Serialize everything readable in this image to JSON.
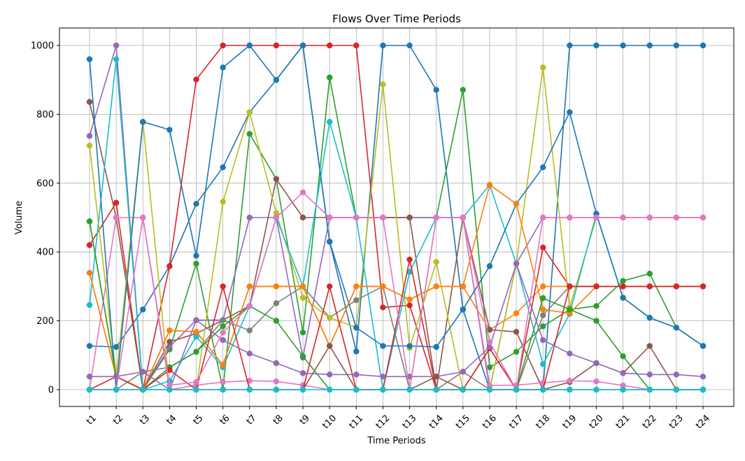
{
  "chart_data": {
    "type": "line",
    "title": "Flows Over Time Periods",
    "xlabel": "Time Periods",
    "ylabel": "Volume",
    "ylim": [
      -50,
      1050
    ],
    "yticks": [
      0,
      200,
      400,
      600,
      800,
      1000
    ],
    "grid": true,
    "categories": [
      "t1",
      "t2",
      "t3",
      "t4",
      "t5",
      "t6",
      "t7",
      "t8",
      "t9",
      "t10",
      "t11",
      "t12",
      "t13",
      "t14",
      "t15",
      "t16",
      "t17",
      "t18",
      "t19",
      "t20",
      "t21",
      "t22",
      "t23",
      "t24"
    ],
    "series": [
      {
        "color": "#1f77b4",
        "values": [
          127,
          124,
          233,
          359,
          540,
          646,
          806,
          900,
          1000,
          430,
          111,
          1000,
          1000,
          871,
          233,
          0,
          0,
          0,
          1000,
          1000,
          1000,
          1000,
          1000,
          1000
        ]
      },
      {
        "color": "#ff7f0e",
        "values": [
          339,
          38,
          0,
          172,
          168,
          72,
          300,
          300,
          300,
          127,
          300,
          300,
          262,
          300,
          300,
          174,
          222,
          300,
          300,
          300,
          300,
          300,
          300,
          300
        ]
      },
      {
        "color": "#2ca02c",
        "values": [
          489,
          38,
          0,
          117,
          366,
          0,
          743,
          612,
          166,
          907,
          500,
          500,
          500,
          500,
          871,
          65,
          110,
          184,
          233,
          243,
          316,
          337,
          180,
          127
        ]
      },
      {
        "color": "#d62728",
        "values": [
          420,
          543,
          0,
          359,
          901,
          1000,
          1000,
          1000,
          1000,
          1000,
          1000,
          239,
          245,
          0,
          0,
          120,
          0,
          413,
          300,
          300,
          300,
          300,
          300,
          300
        ]
      },
      {
        "color": "#9467bd",
        "values": [
          737,
          1000,
          0,
          124,
          202,
          202,
          500,
          500,
          93,
          500,
          500,
          500,
          500,
          500,
          500,
          0,
          366,
          500,
          500,
          500,
          500,
          500,
          500,
          500
        ]
      },
      {
        "color": "#8c564b",
        "values": [
          836,
          500,
          0,
          139,
          163,
          202,
          243,
          612,
          500,
          500,
          500,
          500,
          500,
          0,
          500,
          174,
          168,
          0,
          22,
          77,
          48,
          127,
          0,
          0
        ]
      },
      {
        "color": "#e377c2",
        "values": [
          0,
          500,
          500,
          0,
          13,
          22,
          26,
          24,
          13,
          0,
          0,
          0,
          0,
          500,
          500,
          12,
          13,
          20,
          26,
          24,
          12,
          0,
          0,
          0
        ]
      },
      {
        "color": "#7f7f7f",
        "values": [
          0,
          0,
          52,
          65,
          110,
          202,
          172,
          251,
          300,
          209,
          260,
          300,
          0,
          0,
          52,
          0,
          0,
          216,
          300,
          300,
          300,
          300,
          300,
          300
        ]
      },
      {
        "color": "#bcbd22",
        "values": [
          709,
          38,
          778,
          0,
          0,
          546,
          806,
          513,
          267,
          209,
          181,
          887,
          121,
          371,
          0,
          0,
          366,
          936,
          239,
          500,
          500,
          500,
          500,
          500
        ]
      },
      {
        "color": "#17becf",
        "values": [
          246,
          960,
          0,
          25,
          154,
          65,
          243,
          500,
          300,
          778,
          500,
          0,
          342,
          500,
          500,
          595,
          366,
          74,
          220,
          511,
          267,
          209,
          180,
          127
        ]
      },
      {
        "color": "#1f77b4",
        "values": [
          960,
          0,
          778,
          755,
          389,
          936,
          1000,
          900,
          1000,
          430,
          180,
          127,
          127,
          124,
          233,
          359,
          540,
          646,
          806,
          511,
          267,
          209,
          180,
          127
        ]
      },
      {
        "color": "#ff7f0e",
        "values": [
          339,
          38,
          0,
          172,
          168,
          72,
          300,
          300,
          300,
          127,
          300,
          300,
          262,
          300,
          300,
          595,
          540,
          233,
          222,
          300,
          300,
          300,
          300,
          300
        ]
      },
      {
        "color": "#2ca02c",
        "values": [
          489,
          38,
          0,
          65,
          110,
          184,
          243,
          200,
          97,
          0,
          0,
          0,
          0,
          0,
          0,
          0,
          0,
          266,
          233,
          200,
          97,
          0,
          0,
          0
        ]
      },
      {
        "color": "#d62728",
        "values": [
          0,
          38,
          0,
          57,
          0,
          300,
          0,
          0,
          0,
          300,
          0,
          0,
          378,
          0,
          0,
          120,
          0,
          0,
          300,
          300,
          300,
          300,
          300,
          300
        ]
      },
      {
        "color": "#9467bd",
        "values": [
          38,
          38,
          52,
          0,
          202,
          144,
          105,
          77,
          48,
          44,
          44,
          38,
          38,
          38,
          52,
          124,
          366,
          144,
          105,
          77,
          48,
          44,
          44,
          38
        ]
      },
      {
        "color": "#8c564b",
        "values": [
          0,
          0,
          0,
          0,
          0,
          0,
          0,
          0,
          0,
          127,
          0,
          0,
          0,
          38,
          0,
          0,
          0,
          0,
          0,
          0,
          0,
          0,
          0,
          0
        ]
      },
      {
        "color": "#e377c2",
        "values": [
          0,
          0,
          500,
          13,
          22,
          166,
          243,
          500,
          573,
          500,
          500,
          500,
          0,
          500,
          500,
          138,
          0,
          500,
          500,
          500,
          500,
          500,
          500,
          500
        ]
      },
      {
        "color": "#17becf",
        "values": [
          0,
          0,
          0,
          0,
          0,
          0,
          0,
          0,
          0,
          0,
          0,
          0,
          0,
          0,
          0,
          0,
          0,
          0,
          0,
          0,
          0,
          0,
          0,
          0
        ]
      }
    ]
  }
}
